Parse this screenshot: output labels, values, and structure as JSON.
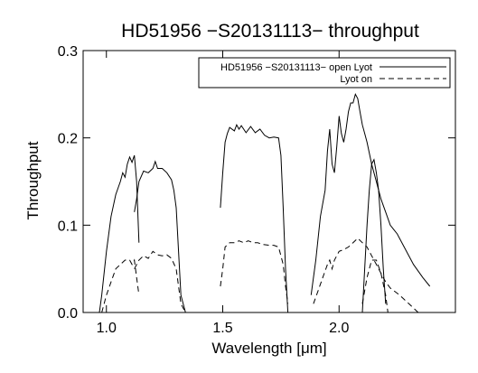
{
  "chart_data": {
    "type": "line",
    "title": "HD51956 −S20131113− throughput",
    "xlabel": "Wavelength [μm]",
    "ylabel": "Throughput",
    "xlim": [
      0.9,
      2.5
    ],
    "ylim": [
      0.0,
      0.3
    ],
    "xticks": [
      {
        "v": 1.0,
        "label": "1.0"
      },
      {
        "v": 1.5,
        "label": "1.5"
      },
      {
        "v": 2.0,
        "label": "2.0"
      }
    ],
    "yticks": [
      {
        "v": 0.0,
        "label": "0.0"
      },
      {
        "v": 0.1,
        "label": "0.1"
      },
      {
        "v": 0.2,
        "label": "0.2"
      },
      {
        "v": 0.3,
        "label": "0.3"
      }
    ],
    "legend_position": "top-right",
    "series": [
      {
        "name": "HD51956 −S20131113− open Lyot",
        "style": "solid",
        "segments": [
          [
            [
              0.97,
              0.0
            ],
            [
              0.98,
              0.02
            ],
            [
              1.0,
              0.07
            ],
            [
              1.02,
              0.11
            ],
            [
              1.04,
              0.135
            ],
            [
              1.06,
              0.15
            ],
            [
              1.07,
              0.16
            ],
            [
              1.08,
              0.155
            ],
            [
              1.09,
              0.17
            ],
            [
              1.1,
              0.178
            ],
            [
              1.11,
              0.172
            ],
            [
              1.12,
              0.18
            ],
            [
              1.13,
              0.15
            ],
            [
              1.14,
              0.08
            ]
          ],
          [
            [
              1.12,
              0.115
            ],
            [
              1.13,
              0.13
            ],
            [
              1.14,
              0.15
            ],
            [
              1.16,
              0.162
            ],
            [
              1.18,
              0.16
            ],
            [
              1.2,
              0.165
            ],
            [
              1.21,
              0.173
            ],
            [
              1.22,
              0.165
            ],
            [
              1.24,
              0.165
            ],
            [
              1.26,
              0.16
            ],
            [
              1.28,
              0.152
            ],
            [
              1.29,
              0.14
            ],
            [
              1.3,
              0.12
            ],
            [
              1.31,
              0.07
            ],
            [
              1.32,
              0.02
            ],
            [
              1.34,
              0.0
            ]
          ],
          [
            [
              1.49,
              0.12
            ],
            [
              1.5,
              0.16
            ],
            [
              1.51,
              0.195
            ],
            [
              1.52,
              0.205
            ],
            [
              1.53,
              0.212
            ],
            [
              1.55,
              0.208
            ],
            [
              1.56,
              0.215
            ],
            [
              1.57,
              0.21
            ],
            [
              1.58,
              0.214
            ],
            [
              1.6,
              0.206
            ],
            [
              1.62,
              0.213
            ],
            [
              1.64,
              0.206
            ],
            [
              1.66,
              0.21
            ],
            [
              1.68,
              0.203
            ],
            [
              1.7,
              0.2
            ],
            [
              1.72,
              0.201
            ],
            [
              1.74,
              0.2
            ],
            [
              1.75,
              0.18
            ],
            [
              1.76,
              0.12
            ],
            [
              1.77,
              0.05
            ],
            [
              1.78,
              0.0
            ]
          ],
          [
            [
              1.88,
              0.02
            ],
            [
              1.9,
              0.06
            ],
            [
              1.92,
              0.11
            ],
            [
              1.94,
              0.14
            ],
            [
              1.95,
              0.185
            ],
            [
              1.96,
              0.21
            ],
            [
              1.97,
              0.17
            ],
            [
              1.98,
              0.16
            ],
            [
              1.99,
              0.19
            ],
            [
              2.0,
              0.225
            ],
            [
              2.01,
              0.205
            ],
            [
              2.02,
              0.195
            ],
            [
              2.03,
              0.21
            ],
            [
              2.04,
              0.23
            ],
            [
              2.05,
              0.24
            ],
            [
              2.06,
              0.24
            ],
            [
              2.07,
              0.25
            ],
            [
              2.08,
              0.245
            ],
            [
              2.09,
              0.23
            ],
            [
              2.1,
              0.215
            ],
            [
              2.11,
              0.205
            ],
            [
              2.12,
              0.195
            ],
            [
              2.14,
              0.17
            ],
            [
              2.16,
              0.15
            ],
            [
              2.18,
              0.13
            ],
            [
              2.2,
              0.115
            ],
            [
              2.22,
              0.1
            ],
            [
              2.25,
              0.09
            ],
            [
              2.28,
              0.075
            ],
            [
              2.32,
              0.055
            ],
            [
              2.36,
              0.04
            ],
            [
              2.39,
              0.03
            ]
          ],
          [
            [
              2.1,
              0.0
            ],
            [
              2.11,
              0.05
            ],
            [
              2.12,
              0.1
            ],
            [
              2.13,
              0.14
            ],
            [
              2.14,
              0.17
            ],
            [
              2.15,
              0.175
            ],
            [
              2.16,
              0.16
            ],
            [
              2.17,
              0.14
            ],
            [
              2.18,
              0.1
            ],
            [
              2.19,
              0.05
            ],
            [
              2.2,
              0.01
            ]
          ]
        ]
      },
      {
        "name": "Lyot on",
        "style": "dashed",
        "segments": [
          [
            [
              0.98,
              0.0
            ],
            [
              1.0,
              0.02
            ],
            [
              1.02,
              0.035
            ],
            [
              1.04,
              0.05
            ],
            [
              1.06,
              0.055
            ],
            [
              1.08,
              0.06
            ],
            [
              1.1,
              0.06
            ],
            [
              1.11,
              0.055
            ],
            [
              1.12,
              0.06
            ],
            [
              1.13,
              0.04
            ],
            [
              1.14,
              0.02
            ]
          ],
          [
            [
              1.12,
              0.05
            ],
            [
              1.14,
              0.06
            ],
            [
              1.16,
              0.065
            ],
            [
              1.18,
              0.062
            ],
            [
              1.2,
              0.07
            ],
            [
              1.22,
              0.066
            ],
            [
              1.24,
              0.065
            ],
            [
              1.26,
              0.066
            ],
            [
              1.28,
              0.062
            ],
            [
              1.3,
              0.05
            ],
            [
              1.31,
              0.03
            ],
            [
              1.32,
              0.01
            ],
            [
              1.34,
              0.0
            ]
          ],
          [
            [
              1.49,
              0.03
            ],
            [
              1.5,
              0.05
            ],
            [
              1.51,
              0.075
            ],
            [
              1.53,
              0.08
            ],
            [
              1.55,
              0.08
            ],
            [
              1.57,
              0.082
            ],
            [
              1.59,
              0.08
            ],
            [
              1.61,
              0.082
            ],
            [
              1.63,
              0.08
            ],
            [
              1.65,
              0.08
            ],
            [
              1.67,
              0.078
            ],
            [
              1.7,
              0.077
            ],
            [
              1.72,
              0.077
            ],
            [
              1.74,
              0.075
            ],
            [
              1.76,
              0.055
            ],
            [
              1.77,
              0.03
            ],
            [
              1.78,
              0.01
            ]
          ],
          [
            [
              1.89,
              0.01
            ],
            [
              1.91,
              0.025
            ],
            [
              1.93,
              0.04
            ],
            [
              1.95,
              0.055
            ],
            [
              1.96,
              0.06
            ],
            [
              1.97,
              0.05
            ],
            [
              1.98,
              0.06
            ],
            [
              2.0,
              0.07
            ],
            [
              2.02,
              0.072
            ],
            [
              2.04,
              0.075
            ],
            [
              2.06,
              0.08
            ],
            [
              2.08,
              0.085
            ],
            [
              2.1,
              0.08
            ],
            [
              2.12,
              0.075
            ],
            [
              2.14,
              0.065
            ],
            [
              2.16,
              0.055
            ],
            [
              2.18,
              0.045
            ],
            [
              2.2,
              0.035
            ],
            [
              2.22,
              0.028
            ],
            [
              2.26,
              0.02
            ],
            [
              2.3,
              0.01
            ],
            [
              2.34,
              0.0
            ]
          ],
          [
            [
              2.1,
              0.01
            ],
            [
              2.12,
              0.04
            ],
            [
              2.14,
              0.06
            ],
            [
              2.16,
              0.06
            ],
            [
              2.18,
              0.045
            ],
            [
              2.2,
              0.02
            ],
            [
              2.21,
              0.0
            ]
          ]
        ]
      }
    ]
  }
}
